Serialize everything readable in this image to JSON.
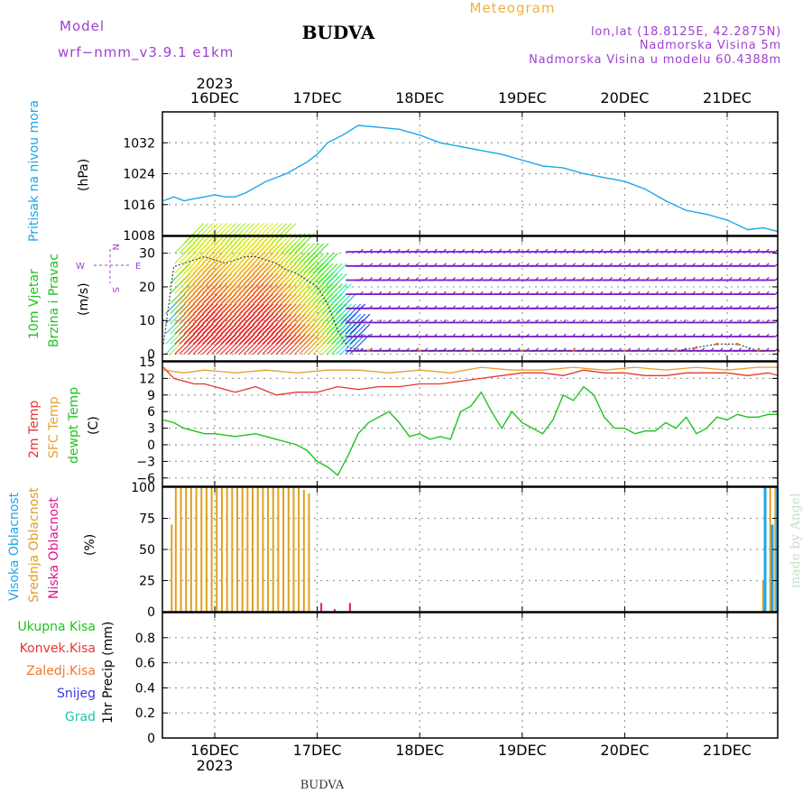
{
  "header": {
    "model_label": "Model",
    "model_name": "wrf−nmm_v3.9.1  e1km",
    "station": "BUDVA",
    "product": "Meteogram",
    "coords": "lon,lat (18.8125E, 42.2875N)",
    "elevation": "Nadmorska Visina 5m",
    "model_elevation": "Nadmorska Visina u modelu 60.4388m"
  },
  "footer": {
    "station": "BUDVA",
    "credit": "made by Angel"
  },
  "colors": {
    "pressure": "#1aa7ec",
    "temp2m": "#e8362f",
    "sfc": "#e8a030",
    "dewpt": "#1ec31e",
    "cloud_high": "#1aa7ec",
    "cloud_mid": "#e0a020",
    "cloud_low": "#e0148c",
    "wind_slow": "#7a20c8",
    "label_purple": "#a040d0",
    "label_orange": "#f0b040"
  },
  "time_axis": {
    "days": [
      "16DEC",
      "17DEC",
      "18DEC",
      "19DEC",
      "20DEC",
      "21DEC"
    ],
    "year": "2023"
  },
  "panels": {
    "pressure": {
      "title": "Pritisak na nivou mora",
      "unit": "(hPa)"
    },
    "wind": {
      "title1": "10m Vjetar",
      "title2": "Brzina i Pravac",
      "unit": "(m/s)",
      "compass_n": "N",
      "compass_s": "S",
      "compass_w": "W",
      "compass_e": "E"
    },
    "temp": {
      "t1": "2m Temp",
      "t2": "SFC Temp",
      "t3": "dewpt Temp",
      "unit": "(C)"
    },
    "cloud": {
      "t1": "Visoka Oblacnost",
      "t2": "Srednja Oblacnost",
      "t3": "Niska Oblacnost",
      "unit": "(%)"
    },
    "precip": {
      "l1": "Ukupna  Kisa",
      "l2": "Konvek.Kisa",
      "l3": "Zaledj.Kisa",
      "l4": "Snijeg",
      "l5": "Grad",
      "unit": "1hr Precip (mm)"
    }
  },
  "chart_data": [
    {
      "type": "line",
      "title": "Pritisak na nivou mora",
      "ylabel": "(hPa)",
      "ylim": [
        1008,
        1040
      ],
      "yticks": [
        "1008",
        "1016",
        "1024",
        "1032"
      ],
      "xlim_days": [
        -0.5,
        5.5
      ],
      "series": [
        {
          "name": "Pritisak na nivou mora",
          "x": [
            -0.5,
            -0.4,
            -0.3,
            -0.2,
            -0.1,
            0,
            0.1,
            0.2,
            0.3,
            0.5,
            0.7,
            0.9,
            1.0,
            1.1,
            1.25,
            1.4,
            1.6,
            1.8,
            2.0,
            2.2,
            2.4,
            2.6,
            2.8,
            3.0,
            3.2,
            3.4,
            3.6,
            3.8,
            4.0,
            4.2,
            4.4,
            4.6,
            4.8,
            5.0,
            5.2,
            5.35,
            5.5
          ],
          "y": [
            1017,
            1018,
            1017,
            1017.5,
            1018,
            1018.5,
            1018,
            1018,
            1019,
            1022,
            1024,
            1027,
            1029,
            1032,
            1034,
            1036.5,
            1036,
            1035.5,
            1034,
            1032,
            1031,
            1030,
            1029,
            1027.5,
            1026,
            1025.5,
            1024,
            1023,
            1022,
            1020,
            1017,
            1014.5,
            1013.5,
            1012,
            1009.5,
            1010,
            1009
          ]
        }
      ]
    },
    {
      "type": "scatter",
      "title": "10m Vjetar Brzina i Pravac",
      "ylabel": "(m/s)",
      "ylim": [
        -2,
        35
      ],
      "yticks": [
        "0",
        "10",
        "20",
        "30"
      ],
      "series": [
        {
          "name": "Brzina",
          "x": [
            -0.5,
            -0.4,
            -0.3,
            -0.2,
            -0.1,
            0,
            0.1,
            0.2,
            0.3,
            0.4,
            0.5,
            0.6,
            0.7,
            0.8,
            0.9,
            1.0,
            1.1,
            1.2,
            1.3,
            1.5,
            2.0,
            2.5,
            3.0,
            3.5,
            4.0,
            4.5,
            4.7,
            4.9,
            5.1,
            5.3,
            5.5
          ],
          "y": [
            3,
            26,
            27,
            28,
            29,
            28,
            27,
            28,
            29,
            29,
            28,
            27,
            25,
            24,
            22,
            20,
            15,
            7,
            2,
            1,
            1,
            1,
            1,
            1,
            1,
            1,
            2,
            3,
            3,
            1,
            1
          ]
        }
      ]
    },
    {
      "type": "line",
      "title": "2m Temp / SFC Temp / dewpt Temp",
      "ylabel": "(C)",
      "ylim": [
        -7.5,
        15
      ],
      "yticks": [
        "−6",
        "−3",
        "0",
        "3",
        "6",
        "9",
        "12",
        "15"
      ],
      "series": [
        {
          "name": "2m Temp",
          "x": [
            -0.5,
            -0.4,
            -0.3,
            -0.2,
            -0.1,
            0,
            0.2,
            0.4,
            0.6,
            0.8,
            1.0,
            1.2,
            1.4,
            1.6,
            1.8,
            2.0,
            2.2,
            2.4,
            2.6,
            2.8,
            3.0,
            3.2,
            3.4,
            3.6,
            3.8,
            4.0,
            4.2,
            4.4,
            4.6,
            4.8,
            5.0,
            5.2,
            5.4,
            5.5
          ],
          "y": [
            14,
            12,
            11.5,
            11,
            11,
            10.5,
            9.5,
            10.5,
            9,
            9.5,
            9.5,
            10.5,
            10,
            10.5,
            10.5,
            11,
            11,
            11.5,
            12,
            12.5,
            13,
            13,
            12.5,
            13.5,
            13,
            13,
            12.5,
            12.5,
            13,
            13,
            13,
            12.5,
            13,
            12.5
          ]
        },
        {
          "name": "SFC Temp",
          "x": [
            -0.5,
            -0.3,
            -0.1,
            0.2,
            0.5,
            0.8,
            1.1,
            1.4,
            1.7,
            2.0,
            2.3,
            2.6,
            2.9,
            3.2,
            3.5,
            3.8,
            4.1,
            4.4,
            4.7,
            5.0,
            5.3,
            5.5
          ],
          "y": [
            13.5,
            13,
            13.5,
            13,
            13.5,
            13,
            13.5,
            13.5,
            13,
            13.5,
            13,
            14,
            13.5,
            13.5,
            14,
            13.5,
            14,
            13.5,
            14,
            13.5,
            14,
            14
          ]
        },
        {
          "name": "dewpt Temp",
          "x": [
            -0.5,
            -0.4,
            -0.3,
            -0.2,
            -0.1,
            0,
            0.2,
            0.4,
            0.6,
            0.8,
            0.9,
            1.0,
            1.1,
            1.2,
            1.3,
            1.4,
            1.5,
            1.6,
            1.7,
            1.8,
            1.9,
            2.0,
            2.1,
            2.2,
            2.3,
            2.4,
            2.5,
            2.6,
            2.7,
            2.8,
            2.9,
            3.0,
            3.1,
            3.2,
            3.3,
            3.4,
            3.5,
            3.6,
            3.7,
            3.8,
            3.9,
            4.0,
            4.1,
            4.2,
            4.3,
            4.4,
            4.5,
            4.6,
            4.7,
            4.8,
            4.9,
            5.0,
            5.1,
            5.2,
            5.3,
            5.4,
            5.5
          ],
          "y": [
            4.5,
            4,
            3,
            2.5,
            2,
            2,
            1.5,
            2,
            1,
            0,
            -1,
            -3,
            -4,
            -5.5,
            -2,
            2,
            4,
            5,
            6,
            4,
            1.5,
            2,
            1,
            1.5,
            1,
            6,
            7,
            9.5,
            6,
            3,
            6,
            4,
            3,
            2,
            4.5,
            9,
            8,
            10.5,
            9,
            5,
            3,
            3,
            2,
            2.5,
            2.5,
            4,
            3,
            5,
            2,
            3,
            5,
            4.5,
            5.5,
            5,
            5,
            5.5,
            5.5
          ]
        }
      ]
    },
    {
      "type": "bar",
      "title": "Oblacnost",
      "ylabel": "(%)",
      "ylim": [
        0,
        100
      ],
      "yticks": [
        "0",
        "25",
        "50",
        "75",
        "100"
      ],
      "series": [
        {
          "name": "Srednja Oblacnost",
          "x": [
            -0.42,
            -0.38,
            -0.33,
            -0.28,
            -0.23,
            -0.18,
            -0.13,
            -0.08,
            -0.03,
            0.02,
            0.07,
            0.12,
            0.17,
            0.22,
            0.27,
            0.32,
            0.37,
            0.42,
            0.47,
            0.52,
            0.57,
            0.62,
            0.67,
            0.72,
            0.77,
            0.82,
            0.87,
            0.92,
            5.35,
            5.42,
            5.47
          ],
          "y": [
            70,
            100,
            100,
            100,
            100,
            100,
            100,
            100,
            100,
            100,
            100,
            100,
            100,
            100,
            100,
            100,
            100,
            100,
            100,
            100,
            100,
            100,
            100,
            100,
            100,
            100,
            98,
            95,
            25,
            100,
            100
          ]
        },
        {
          "name": "Visoka Oblacnost",
          "x": [
            5.37,
            5.44,
            5.49
          ],
          "y": [
            100,
            70,
            100
          ]
        },
        {
          "name": "Niska Oblacnost",
          "x": [
            1.04,
            1.17,
            1.32
          ],
          "y": [
            7,
            2,
            7
          ]
        }
      ]
    },
    {
      "type": "bar",
      "title": "1hr Precip (mm)",
      "ylabel": "1hr Precip (mm)",
      "ylim": [
        0,
        1.0
      ],
      "yticks": [
        "0",
        "0.2",
        "0.4",
        "0.6",
        "0.8"
      ],
      "series": [
        {
          "name": "Ukupna Kisa",
          "x": [],
          "y": []
        }
      ]
    }
  ]
}
